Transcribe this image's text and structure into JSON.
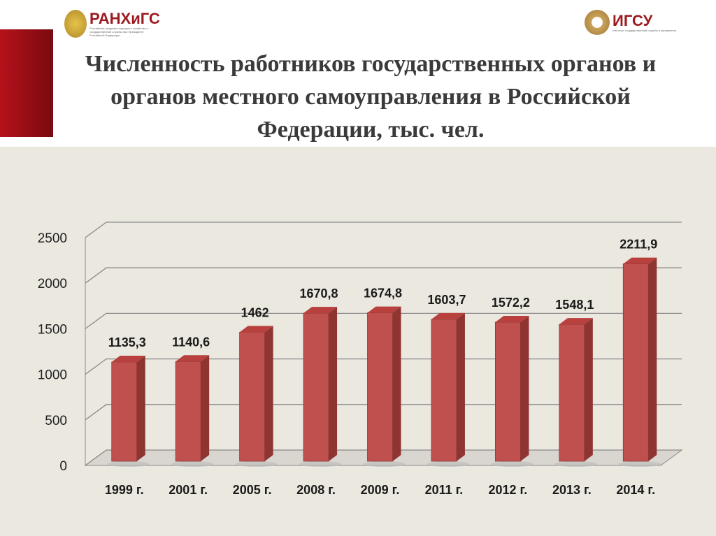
{
  "header": {
    "title": "Численность работников государственных органов  и органов местного самоуправления  в Российской Федерации,  тыс. чел.",
    "logo_left": {
      "name": "РАНХиГС",
      "subtitle": "Российская академия народного хозяйства и государственной службы при Президенте Российской Федерации"
    },
    "logo_right": {
      "name": "ИГСУ",
      "subtitle": "Институт государственной службы и управления"
    }
  },
  "chart_data": {
    "type": "bar",
    "title": "Численность работников государственных органов и органов местного самоуправления в Российской Федерации, тыс. чел.",
    "categories": [
      "1999 г.",
      "2001 г.",
      "2005 г.",
      "2008 г.",
      "2009 г.",
      "2011 г.",
      "2012 г.",
      "2013 г.",
      "2014 г."
    ],
    "values": [
      1135.3,
      1140.6,
      1462,
      1670.8,
      1674.8,
      1603.7,
      1572.2,
      1548.1,
      2211.9
    ],
    "data_labels": [
      "1135,3",
      "1140,6",
      "1462",
      "1670,8",
      "1674,8",
      "1603,7",
      "1572,2",
      "1548,1",
      "2211,9"
    ],
    "yticks": [
      0,
      500,
      1000,
      1500,
      2000,
      2500
    ],
    "ylim": [
      0,
      2500
    ],
    "xlabel": "",
    "ylabel": "",
    "grid": true,
    "bar_color": "#c0504d"
  }
}
